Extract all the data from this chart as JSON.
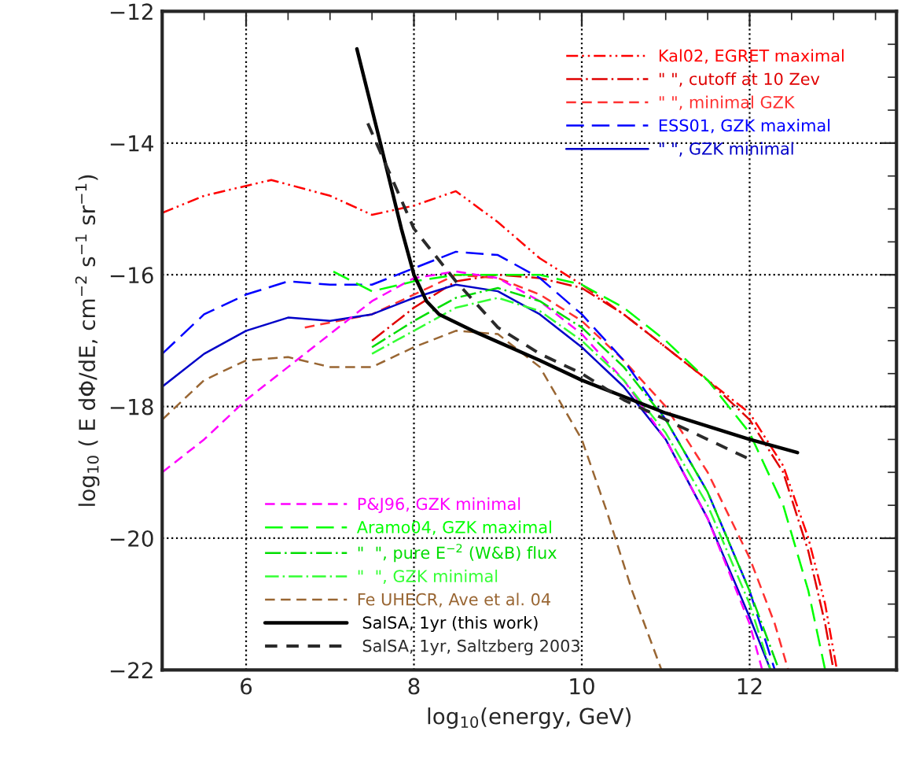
{
  "chart_data": {
    "type": "line",
    "xlabel": "log$_{10}$(energy, GeV)",
    "ylabel": "log$_{10}$ ( E dΦ/dE, cm$^{−2}$ s$^{−1}$ sr$^{−1}$)",
    "xlim": [
      5,
      13.75
    ],
    "ylim": [
      -22,
      -12
    ],
    "xticks": [
      6,
      8,
      10,
      12
    ],
    "yticks": [
      {
        "value": -22,
        "label": "−22"
      },
      {
        "value": -20,
        "label": "−20"
      },
      {
        "value": -18,
        "label": "−18"
      },
      {
        "value": -16,
        "label": "−16"
      },
      {
        "value": -14,
        "label": "−14"
      },
      {
        "value": -12,
        "label": "−12"
      }
    ],
    "grid": true,
    "legend": "right",
    "series": [
      {
        "name": "Kal02, EGRET maximal",
        "color": "#ff0000",
        "line_style": "dashed",
        "x": [
          5,
          5.5,
          6.3,
          7,
          7.5,
          8,
          8.5,
          9,
          9.5,
          10,
          10.5,
          11,
          11.5,
          12,
          12.4,
          12.7,
          12.9,
          13.04
        ],
        "values": [
          -15.06,
          -14.8,
          -14.56,
          -14.8,
          -15.09,
          -14.95,
          -14.73,
          -15.2,
          -15.75,
          -16.15,
          -16.6,
          -17.1,
          -17.6,
          -18.1,
          -18.9,
          -20,
          -21,
          -22
        ]
      },
      {
        "name": "\" \", cutoff at 10 Zev",
        "color": "#e00000",
        "line_style": "dashed",
        "x": [
          7.5,
          8,
          8.5,
          9,
          9.5,
          10,
          10.5,
          11,
          11.5,
          12,
          12.4,
          12.7,
          12.9,
          13.0
        ],
        "values": [
          -17.0,
          -16.5,
          -16.1,
          -16.0,
          -16.05,
          -16.2,
          -16.6,
          -17.1,
          -17.6,
          -18.2,
          -19.0,
          -20.2,
          -21.3,
          -22
        ]
      },
      {
        "name": "\" \", minimal GZK",
        "color": "#ff3030",
        "line_style": "dashed",
        "x": [
          6.7,
          7.5,
          8,
          8.5,
          9,
          9.5,
          10,
          10.5,
          11,
          11.5,
          12,
          12.3,
          12.46
        ],
        "values": [
          -16.8,
          -16.6,
          -16.3,
          -16.0,
          -16.05,
          -16.3,
          -16.7,
          -17.3,
          -18.0,
          -19.0,
          -20.3,
          -21.3,
          -22
        ]
      },
      {
        "name": "ESS01, GZK maximal",
        "color": "#0000ff",
        "line_style": "dashed",
        "x": [
          5,
          5.5,
          6,
          6.5,
          7,
          7.5,
          8,
          8.5,
          9,
          9.5,
          10,
          10.5,
          11,
          11.5,
          12,
          12.3
        ],
        "values": [
          -17.2,
          -16.6,
          -16.3,
          -16.1,
          -16.15,
          -16.15,
          -15.9,
          -15.65,
          -15.7,
          -16.05,
          -16.6,
          -17.3,
          -18.2,
          -19.3,
          -20.8,
          -22
        ]
      },
      {
        "name": "\" \", GZK minimal",
        "color": "#0000c8",
        "line_style": "solid",
        "x": [
          5,
          5.5,
          6,
          6.5,
          7,
          7.5,
          8,
          8.5,
          9,
          9.5,
          10,
          10.5,
          11,
          11.5,
          12,
          12.25
        ],
        "values": [
          -17.7,
          -17.2,
          -16.85,
          -16.65,
          -16.7,
          -16.6,
          -16.35,
          -16.15,
          -16.25,
          -16.6,
          -17.1,
          -17.7,
          -18.5,
          -19.7,
          -21.2,
          -22
        ]
      },
      {
        "name": "P&J96, GZK minimal",
        "color": "#ff00ff",
        "line_style": "dashed",
        "x": [
          5,
          5.5,
          6,
          6.5,
          7,
          7.5,
          8,
          8.5,
          9,
          9.5,
          10,
          10.5,
          11,
          11.5,
          12,
          12.15
        ],
        "values": [
          -19.0,
          -18.5,
          -17.9,
          -17.4,
          -16.9,
          -16.4,
          -16.05,
          -15.95,
          -16.05,
          -16.4,
          -16.9,
          -17.6,
          -18.5,
          -19.7,
          -21.3,
          -22
        ]
      },
      {
        "name": "Aramo04, GZK maximal",
        "color": "#00ff00",
        "line_style": "dashed",
        "x": [
          7.04,
          7.5,
          8,
          8.5,
          9,
          9.5,
          10,
          10.5,
          11,
          11.5,
          12,
          12.4,
          12.7,
          12.9
        ],
        "values": [
          -15.95,
          -16.25,
          -16.1,
          -16.0,
          -16.0,
          -16.0,
          -16.15,
          -16.5,
          -17.0,
          -17.6,
          -18.4,
          -19.5,
          -20.8,
          -22
        ]
      },
      {
        "name": "\"  \", pure E$^{−2}$ (W&B) flux",
        "color": "#00dd00",
        "line_style": "dashed",
        "x": [
          7.5,
          8,
          8.5,
          9,
          9.5,
          10,
          10.5,
          11,
          11.5,
          12,
          12.35
        ],
        "values": [
          -17.1,
          -16.7,
          -16.35,
          -16.2,
          -16.4,
          -16.8,
          -17.4,
          -18.2,
          -19.3,
          -20.8,
          -22
        ]
      },
      {
        "name": "\"  \", GZK minimal",
        "color": "#33ff33",
        "line_style": "dashed",
        "x": [
          7.5,
          8,
          8.5,
          9,
          9.5,
          10,
          10.5,
          11,
          11.5,
          12,
          12.25
        ],
        "values": [
          -17.2,
          -16.85,
          -16.5,
          -16.35,
          -16.55,
          -17.0,
          -17.6,
          -18.4,
          -19.5,
          -21.0,
          -22
        ]
      },
      {
        "name": "Fe UHECR, Ave et al. 04",
        "color": "#996633",
        "line_style": "dashed",
        "x": [
          5,
          5.5,
          6,
          6.5,
          7,
          7.5,
          8,
          8.5,
          9,
          9.5,
          10,
          10.3,
          10.6,
          10.95
        ],
        "values": [
          -18.2,
          -17.6,
          -17.3,
          -17.25,
          -17.4,
          -17.4,
          -17.1,
          -16.85,
          -16.9,
          -17.4,
          -18.5,
          -19.6,
          -20.8,
          -22
        ]
      },
      {
        "name": " SalSA, 1yr (this work)",
        "color": "#000000",
        "line_style": "solid",
        "x": [
          7.32,
          7.6,
          7.85,
          8.0,
          8.15,
          8.3,
          8.7,
          9.5,
          10,
          10.5,
          11,
          11.5,
          12,
          12.57
        ],
        "values": [
          -12.57,
          -14.0,
          -15.3,
          -16.0,
          -16.4,
          -16.6,
          -16.85,
          -17.3,
          -17.6,
          -17.85,
          -18.1,
          -18.3,
          -18.5,
          -18.7
        ]
      },
      {
        "name": " SalSA, 1yr, Saltzberg 2003",
        "color": "#2a2a2a",
        "line_style": "dashed",
        "x": [
          7.45,
          8.0,
          8.5,
          9.0,
          9.5,
          10,
          10.5,
          11,
          11.5,
          12
        ],
        "values": [
          -13.7,
          -15.3,
          -16.1,
          -16.8,
          -17.2,
          -17.5,
          -17.9,
          -18.2,
          -18.5,
          -18.8
        ]
      }
    ]
  }
}
